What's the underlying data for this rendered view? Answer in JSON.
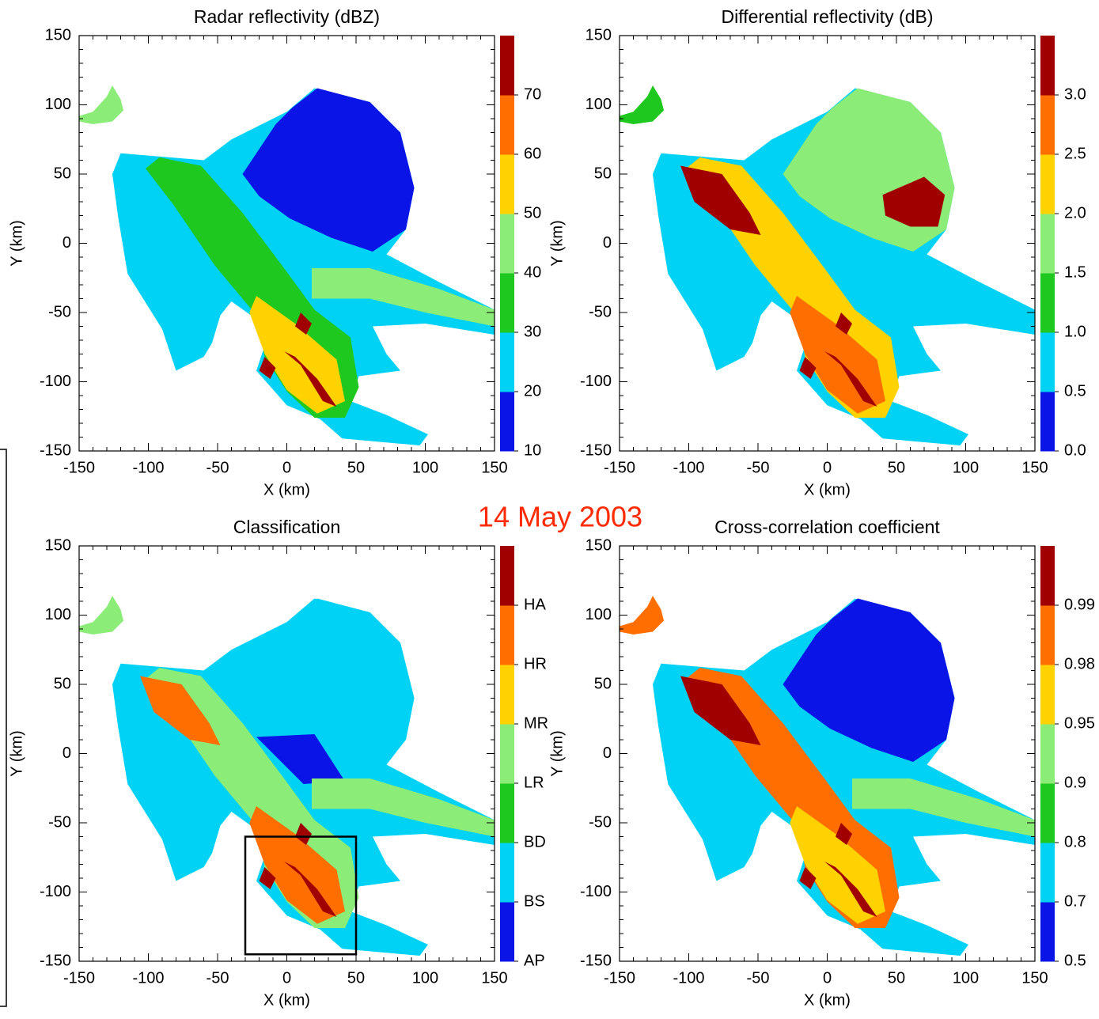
{
  "figure_title": "14 May 2003",
  "chart_data": [
    {
      "type": "heatmap",
      "title": "Radar reflectivity (dBZ)",
      "xlabel": "X (km)",
      "ylabel": "Y (km)",
      "xlim": [
        -150,
        150
      ],
      "ylim": [
        -150,
        150
      ],
      "xticks": [
        -150,
        -100,
        -50,
        0,
        50,
        100,
        150
      ],
      "yticks": [
        -150,
        -100,
        -50,
        0,
        50,
        100,
        150
      ],
      "colorbar": {
        "ticks": [
          10,
          20,
          30,
          40,
          50,
          60,
          70
        ],
        "colors": [
          "#0a14e6",
          "#00d2f5",
          "#1ec81e",
          "#8cec78",
          "#ffd200",
          "#ff6e00",
          "#a00000"
        ]
      }
    },
    {
      "type": "heatmap",
      "title": "Differential reflectivity (dB)",
      "xlabel": "X (km)",
      "ylabel": "Y (km)",
      "xlim": [
        -150,
        150
      ],
      "ylim": [
        -150,
        150
      ],
      "xticks": [
        -150,
        -100,
        -50,
        0,
        50,
        100,
        150
      ],
      "yticks": [
        -150,
        -100,
        -50,
        0,
        50,
        100,
        150
      ],
      "colorbar": {
        "ticks": [
          {
            "value": 0,
            "label": "0.0"
          },
          0.5,
          {
            "value": 1,
            "label": "1.0"
          },
          1.5,
          {
            "value": 2,
            "label": "2.0"
          },
          2.5,
          {
            "value": 3,
            "label": "3.0"
          }
        ],
        "colors": [
          "#0a14e6",
          "#00d2f5",
          "#1ec81e",
          "#8cec78",
          "#ffd200",
          "#ff6e00",
          "#a00000"
        ]
      }
    },
    {
      "type": "heatmap",
      "title": "Classification",
      "xlabel": "X (km)",
      "ylabel": "Y (km)",
      "xlim": [
        -150,
        150
      ],
      "ylim": [
        -150,
        150
      ],
      "xticks": [
        -150,
        -100,
        -50,
        0,
        50,
        100,
        150
      ],
      "yticks": [
        -150,
        -100,
        -50,
        0,
        50,
        100,
        150
      ],
      "colorbar": {
        "ticks": [
          "AP",
          "BS",
          "BD",
          "LR",
          "MR",
          "HR",
          "HA"
        ],
        "colors": [
          "#0a14e6",
          "#00d2f5",
          "#1ec81e",
          "#8cec78",
          "#ffd200",
          "#ff6e00",
          "#a00000"
        ]
      }
    },
    {
      "type": "heatmap",
      "title": "Cross-correlation coefficient",
      "xlabel": "X (km)",
      "ylabel": "Y (km)",
      "xlim": [
        -150,
        150
      ],
      "ylim": [
        -150,
        150
      ],
      "xticks": [
        -150,
        -100,
        -50,
        0,
        50,
        100,
        150
      ],
      "yticks": [
        -150,
        -100,
        -50,
        0,
        50,
        100,
        150
      ],
      "colorbar": {
        "ticks": [
          0.5,
          0.7,
          0.8,
          0.9,
          0.95,
          0.98,
          0.99
        ],
        "colors": [
          "#0a14e6",
          "#00d2f5",
          "#1ec81e",
          "#8cec78",
          "#ffd200",
          "#ff6e00",
          "#a00000"
        ]
      }
    }
  ]
}
